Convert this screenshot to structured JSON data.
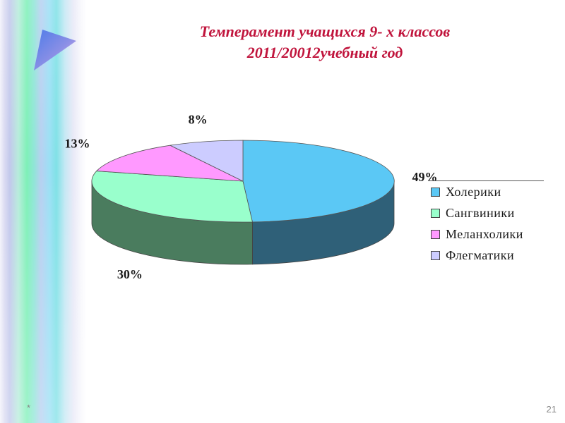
{
  "slide": {
    "title_line1": "Темперамент учащихся 9- х классов",
    "title_line2": "2011/20012учебный год",
    "footer_marker": "*",
    "page_number": "21"
  },
  "chart_data": {
    "type": "pie",
    "style": "3d",
    "title": "Темперамент учащихся 9- х классов 2011/20012учебный год",
    "categories": [
      "Холерики",
      "Сангвиники",
      "Меланхолики",
      "Флегматики"
    ],
    "values": [
      49,
      30,
      13,
      8
    ],
    "labels": [
      "49%",
      "30%",
      "13%",
      "8%"
    ],
    "colors": [
      "#5bc8f5",
      "#99ffcc",
      "#ff99ff",
      "#ccccff"
    ],
    "side_colors": [
      "#2f6078",
      "#4a7c5e",
      "#7d4a7d",
      "#66668a"
    ],
    "legend": {
      "placement": "right"
    }
  },
  "icons": {
    "decor": "triangle-arrow-icon"
  }
}
